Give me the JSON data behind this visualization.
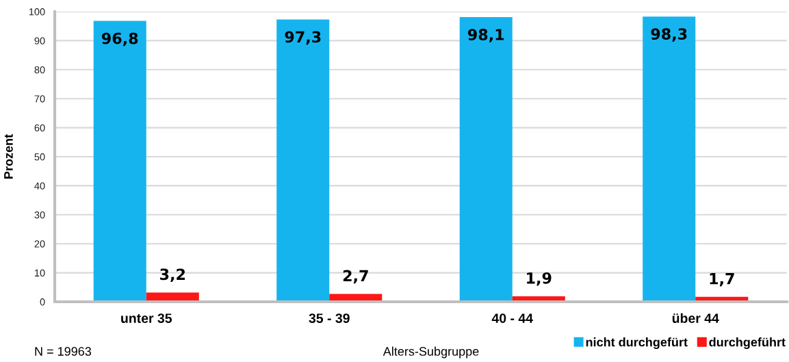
{
  "chart_data": {
    "type": "bar",
    "xlabel": "Alters-Subgruppe",
    "ylabel": "Prozent",
    "categories": [
      "unter 35",
      "35 - 39",
      "40 - 44",
      "über 44"
    ],
    "series": [
      {
        "name": "nicht durchgefürt",
        "color": "#16b4ee",
        "values": [
          96.8,
          97.3,
          98.1,
          98.3
        ],
        "value_labels": [
          "96,8",
          "97,3",
          "98,1",
          "98,3"
        ]
      },
      {
        "name": "durchgeführt",
        "color": "#fe1716",
        "values": [
          3.2,
          2.7,
          1.9,
          1.7
        ],
        "value_labels": [
          "3,2",
          "2,7",
          "1,9",
          "1,7"
        ]
      }
    ],
    "ylim": [
      0,
      100
    ],
    "yticks": [
      0,
      10,
      20,
      30,
      40,
      50,
      60,
      70,
      80,
      90,
      100
    ],
    "grid": "y",
    "legend": "bottom right",
    "annotations": [
      "N = 19963"
    ]
  }
}
